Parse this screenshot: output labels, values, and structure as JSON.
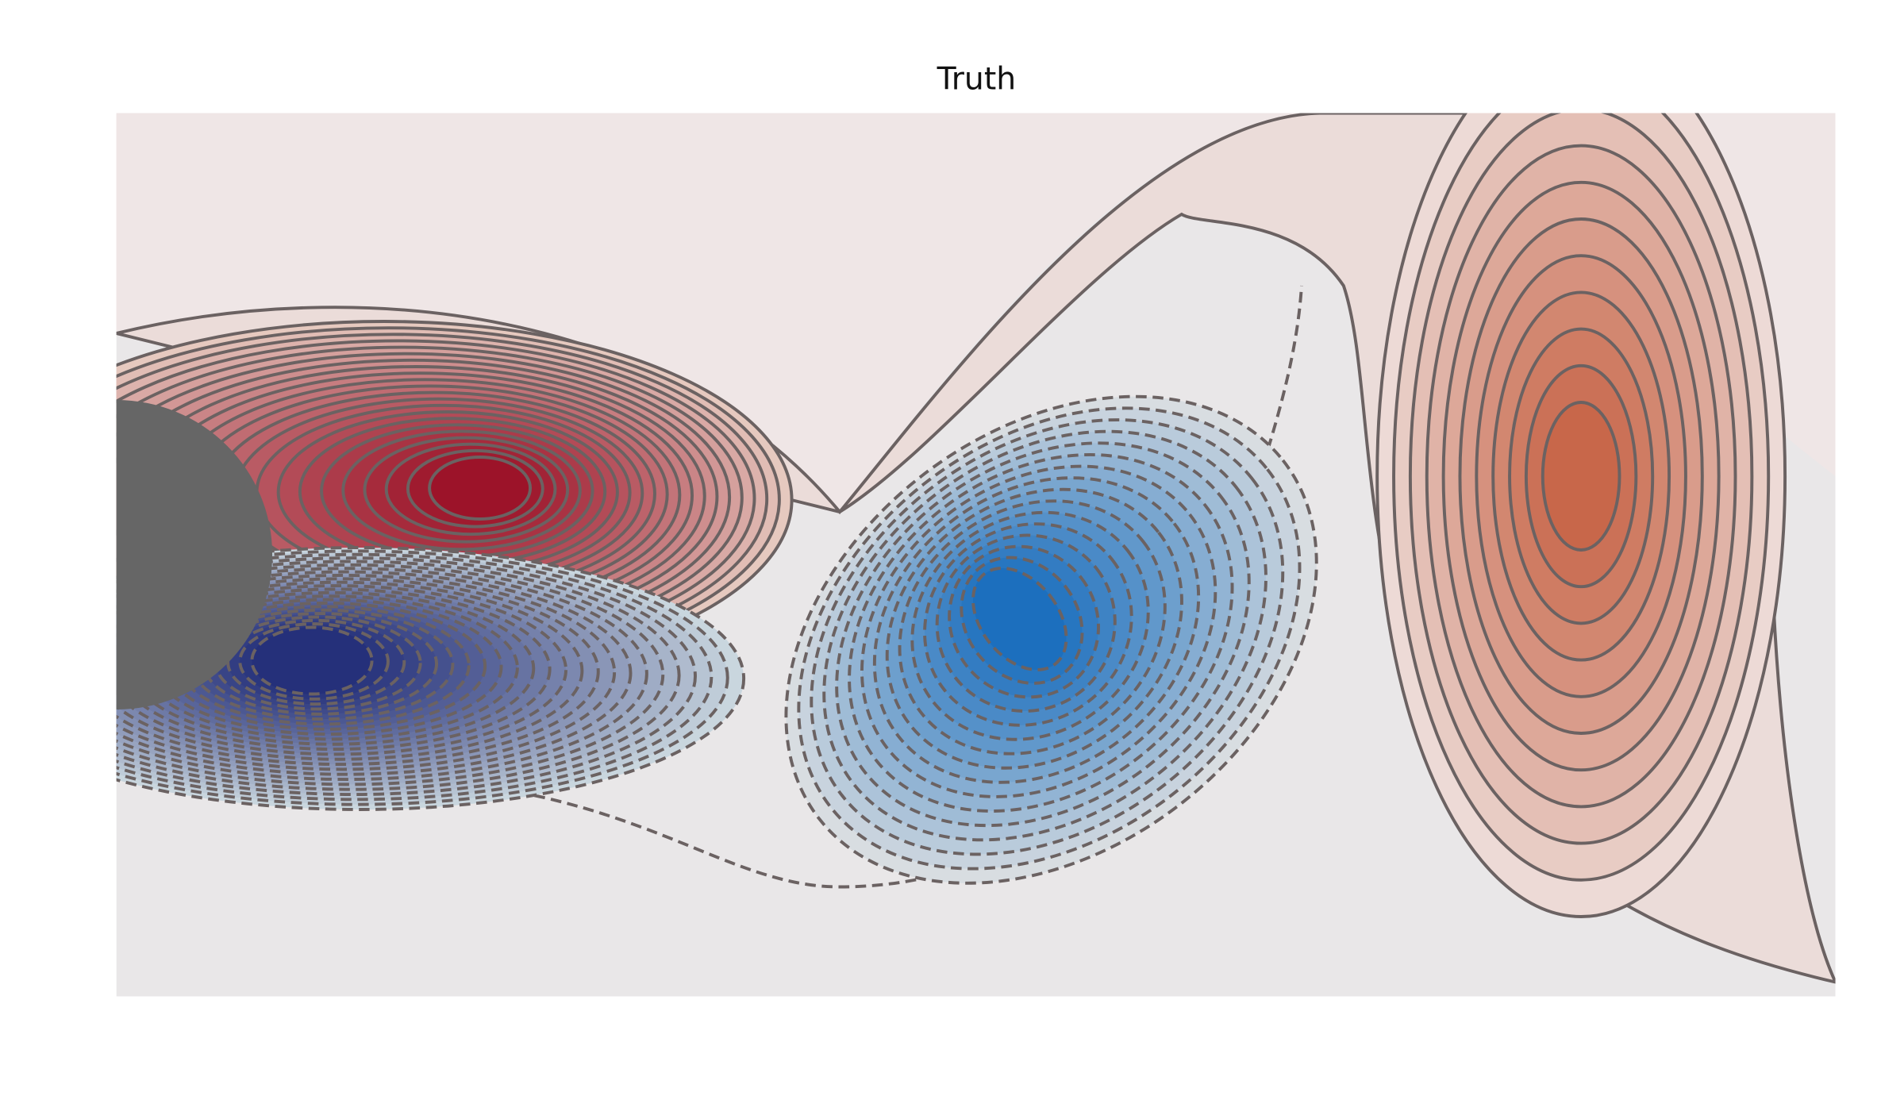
{
  "chart_data": {
    "type": "contour",
    "title": "Truth"
  }
}
